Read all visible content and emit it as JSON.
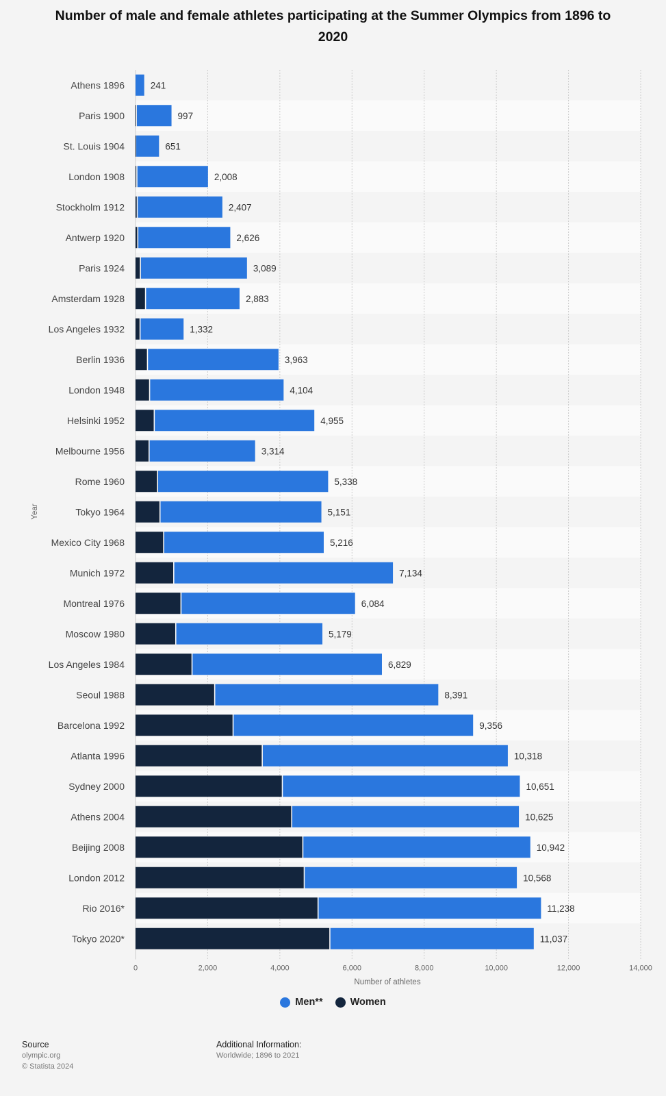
{
  "title": "Number of male and female athletes participating at the Summer Olympics from 1896 to 2020",
  "colors": {
    "men": "#2a77de",
    "women": "#13253d",
    "band": "#fafafa",
    "grid": "#cccccc"
  },
  "legend": {
    "men": "Men**",
    "women": "Women"
  },
  "source": {
    "heading": "Source",
    "line1": "olympic.org",
    "line2": "© Statista 2024"
  },
  "additional_info": {
    "heading": "Additional Information:",
    "text": "Worldwide; 1896 to 2021"
  },
  "chart_data": {
    "type": "bar",
    "orientation": "horizontal",
    "stacked": true,
    "title": "Number of male and female athletes participating at the Summer Olympics from 1896 to 2020",
    "xlabel": "Number of athletes",
    "ylabel": "Year",
    "xlim": [
      0,
      14000
    ],
    "xticks": [
      0,
      2000,
      4000,
      6000,
      8000,
      10000,
      12000,
      14000
    ],
    "xtick_labels": [
      "0",
      "2,000",
      "4,000",
      "6,000",
      "8,000",
      "10,000",
      "12,000",
      "14,000"
    ],
    "grid": true,
    "legend_position": "bottom",
    "categories": [
      "Athens 1896",
      "Paris 1900",
      "St. Louis 1904",
      "London 1908",
      "Stockholm 1912",
      "Antwerp 1920",
      "Paris 1924",
      "Amsterdam 1928",
      "Los Angeles 1932",
      "Berlin 1936",
      "London 1948",
      "Helsinki 1952",
      "Melbourne 1956",
      "Rome 1960",
      "Tokyo 1964",
      "Mexico City 1968",
      "Munich 1972",
      "Montreal 1976",
      "Moscow 1980",
      "Los Angeles 1984",
      "Seoul 1988",
      "Barcelona 1992",
      "Atlanta 1996",
      "Sydney 2000",
      "Athens 2004",
      "Beijing 2008",
      "London 2012",
      "Rio 2016*",
      "Tokyo 2020*"
    ],
    "series": [
      {
        "name": "Women",
        "values": [
          0,
          22,
          6,
          37,
          48,
          63,
          135,
          277,
          126,
          331,
          390,
          519,
          376,
          611,
          678,
          781,
          1059,
          1260,
          1115,
          1566,
          2194,
          2704,
          3512,
          4069,
          4329,
          4637,
          4676,
          5059,
          5386
        ]
      },
      {
        "name": "Men**",
        "values": [
          241,
          975,
          645,
          1971,
          2359,
          2563,
          2954,
          2606,
          1206,
          3632,
          3714,
          4436,
          2938,
          4727,
          4473,
          4435,
          6075,
          4824,
          4064,
          5263,
          6197,
          6652,
          6806,
          6582,
          6296,
          6305,
          5892,
          6179,
          5651
        ]
      }
    ],
    "totals": [
      241,
      997,
      651,
      2008,
      2407,
      2626,
      3089,
      2883,
      1332,
      3963,
      4104,
      4955,
      3314,
      5338,
      5151,
      5216,
      7134,
      6084,
      5179,
      6829,
      8391,
      9356,
      10318,
      10651,
      10625,
      10942,
      10568,
      11238,
      11037
    ],
    "total_labels": [
      "241",
      "997",
      "651",
      "2,008",
      "2,407",
      "2,626",
      "3,089",
      "2,883",
      "1,332",
      "3,963",
      "4,104",
      "4,955",
      "3,314",
      "5,338",
      "5,151",
      "5,216",
      "7,134",
      "6,084",
      "5,179",
      "6,829",
      "8,391",
      "9,356",
      "10,318",
      "10,651",
      "10,625",
      "10,942",
      "10,568",
      "11,238",
      "11,037"
    ]
  }
}
